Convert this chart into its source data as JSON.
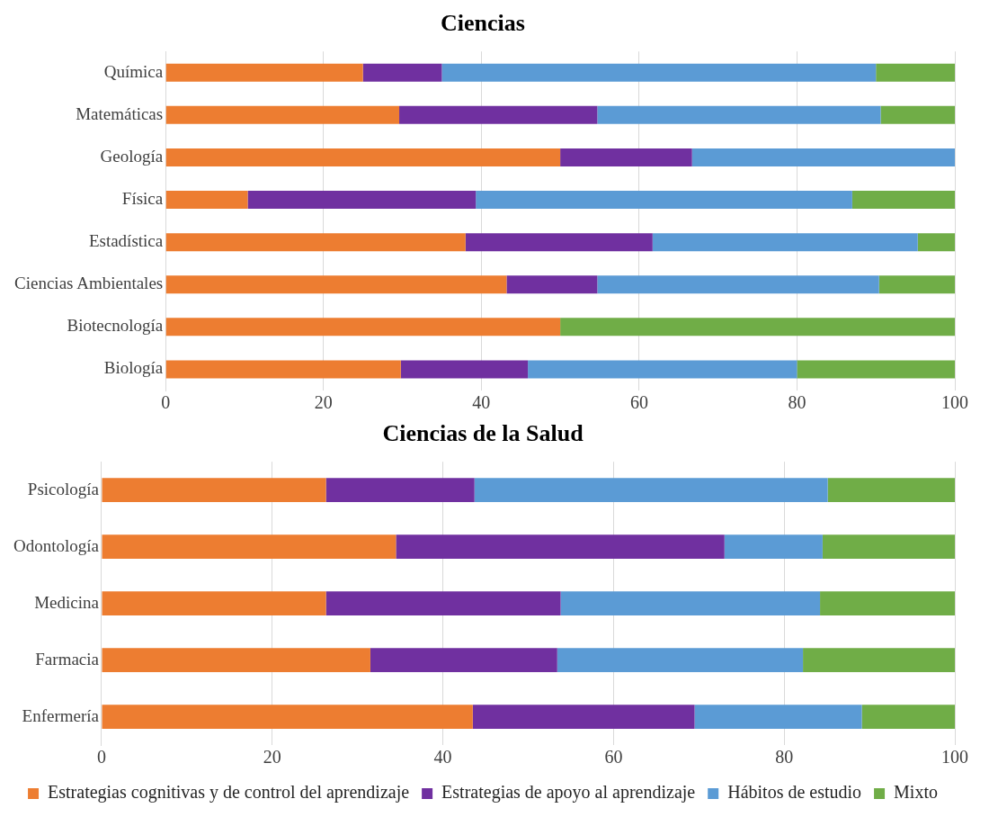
{
  "chart_data": [
    {
      "type": "bar",
      "title": "Ciencias",
      "orientation": "horizontal",
      "stacked": true,
      "categories": [
        "Química",
        "Matemáticas",
        "Geología",
        "Física",
        "Estadística",
        "Ciencias Ambientales",
        "Biotecnología",
        "Biología"
      ],
      "series": [
        {
          "color": "#ed7d31",
          "values": [
            25,
            29.6,
            50,
            10.4,
            38.0,
            43.2,
            50,
            29.8
          ]
        },
        {
          "color": "#7030a0",
          "values": [
            10,
            25.1,
            16.7,
            28.9,
            23.7,
            11.5,
            0,
            16.1
          ]
        },
        {
          "color": "#5b9bd5",
          "values": [
            55,
            35.9,
            33.3,
            47.7,
            33.6,
            35.7,
            0,
            34.1
          ]
        },
        {
          "color": "#70ad47",
          "values": [
            10,
            9.4,
            0,
            13.0,
            4.7,
            9.6,
            50,
            20.0
          ]
        }
      ],
      "xlim": [
        0,
        100
      ],
      "xticks": [
        0,
        20,
        40,
        60,
        80,
        100
      ],
      "grid": "x",
      "legend": false
    },
    {
      "type": "bar",
      "title": "Ciencias de la Salud",
      "orientation": "horizontal",
      "stacked": true,
      "categories": [
        "Psicología",
        "Odontología",
        "Medicina",
        "Farmacia",
        "Enfermería"
      ],
      "series": [
        {
          "name": "Estrategias cognitivas y de control del aprendizaje",
          "color": "#ed7d31",
          "values": [
            26.3,
            34.5,
            26.3,
            31.5,
            43.5
          ]
        },
        {
          "name": "Estrategias de apoyo al aprendizaje",
          "color": "#7030a0",
          "values": [
            17.4,
            38.5,
            27.5,
            21.9,
            26.0
          ]
        },
        {
          "name": "Hábitos de estudio",
          "color": "#5b9bd5",
          "values": [
            41.4,
            11.5,
            30.4,
            28.8,
            19.6
          ]
        },
        {
          "name": "Mixto",
          "color": "#70ad47",
          "values": [
            14.9,
            15.5,
            15.8,
            17.8,
            10.9
          ]
        }
      ],
      "xlim": [
        0,
        100
      ],
      "xticks": [
        0,
        20,
        40,
        60,
        80,
        100
      ],
      "grid": "x",
      "legend": "bottom"
    }
  ]
}
